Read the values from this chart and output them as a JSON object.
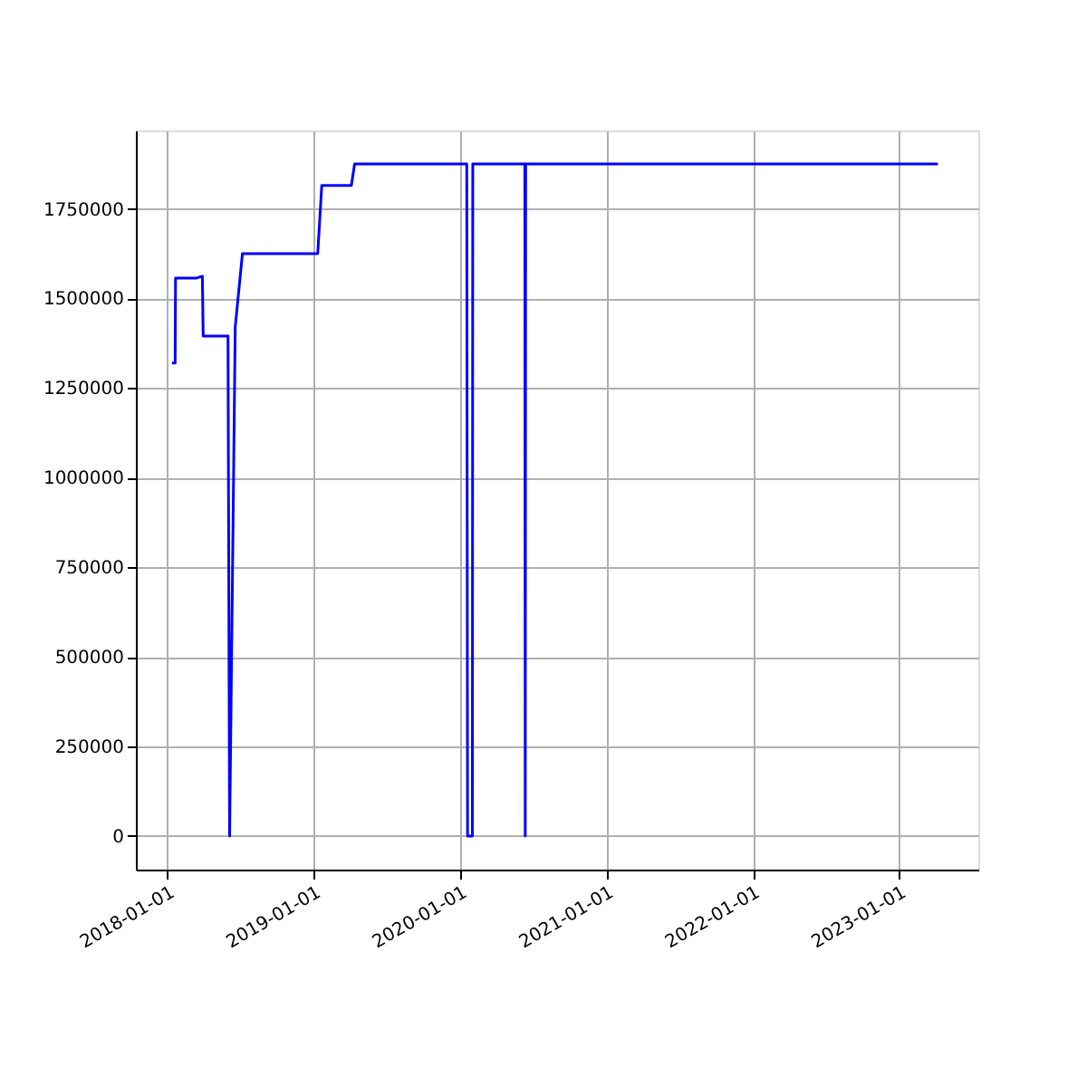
{
  "chart_data": {
    "type": "line",
    "x": [
      "2018-01-12",
      "2018-01-20",
      "2018-01-21",
      "2018-03-15",
      "2018-03-29",
      "2018-03-31",
      "2018-06-01",
      "2018-06-05",
      "2018-06-19",
      "2018-07-07",
      "2019-01-11",
      "2019-01-21",
      "2019-04-05",
      "2019-04-13",
      "2020-01-18",
      "2020-01-20",
      "2020-02-01",
      "2020-02-02",
      "2020-06-11",
      "2020-06-12",
      "2020-06-13",
      "2023-04-08"
    ],
    "series": [
      {
        "color": "#0000ff",
        "values": [
          1320000,
          1320000,
          1557000,
          1557000,
          1562000,
          1395000,
          1395000,
          0,
          1420000,
          1625000,
          1625000,
          1815000,
          1815000,
          1875000,
          1875000,
          0,
          0,
          1875000,
          1875000,
          0,
          1875000,
          1875000
        ]
      }
    ],
    "xlim": [
      "2017-10-14",
      "2023-07-18"
    ],
    "xticks": [
      {
        "value": "2018-01-01",
        "label": "2018-01-01"
      },
      {
        "value": "2019-01-01",
        "label": "2019-01-01"
      },
      {
        "value": "2020-01-01",
        "label": "2020-01-01"
      },
      {
        "value": "2021-01-01",
        "label": "2021-01-01"
      },
      {
        "value": "2022-01-01",
        "label": "2022-01-01"
      },
      {
        "value": "2023-01-01",
        "label": "2023-01-01"
      }
    ],
    "ylim": [
      -93750,
      1968750
    ],
    "yticks": [
      0,
      250000,
      500000,
      750000,
      1000000,
      1250000,
      1500000,
      1750000
    ],
    "grid": true,
    "line_style": "solid",
    "marker": "none"
  }
}
